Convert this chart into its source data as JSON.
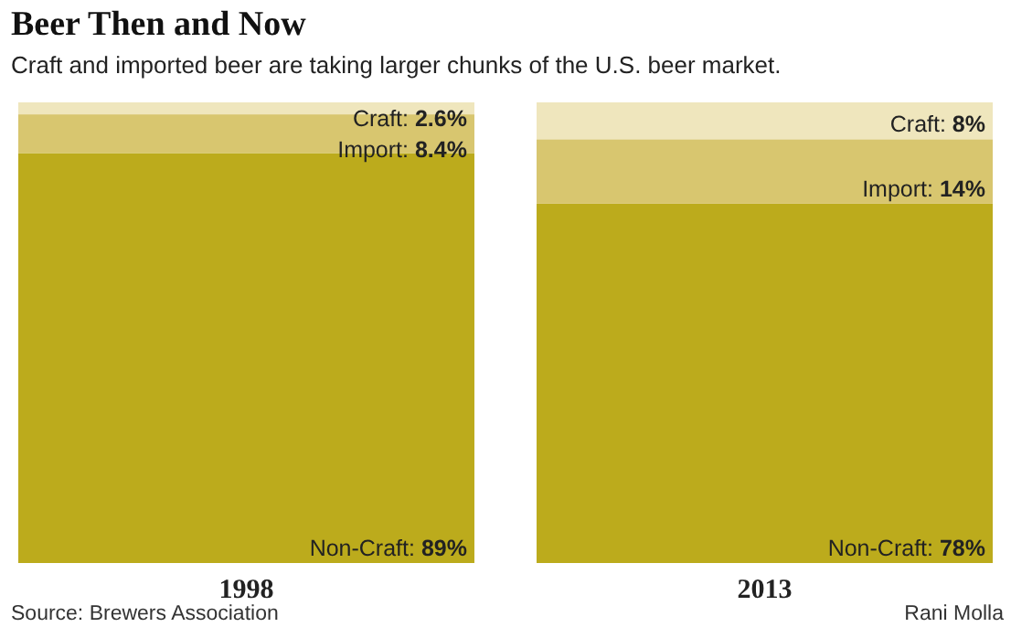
{
  "chart_data": {
    "type": "bar",
    "title": "Beer Then and Now",
    "subtitle": "Craft and imported beer are taking larger chunks of the U.S. beer market.",
    "categories": [
      "1998",
      "2013"
    ],
    "stacked": true,
    "series": [
      {
        "name": "Non-Craft:",
        "color": "#bcab1c",
        "values": [
          89,
          78
        ],
        "value_labels": [
          "89%",
          "78%"
        ]
      },
      {
        "name": "Import:",
        "color": "#d8c66f",
        "values": [
          8.4,
          14
        ],
        "value_labels": [
          "8.4%",
          "14%"
        ]
      },
      {
        "name": "Craft:",
        "color": "#efe6bd",
        "values": [
          2.6,
          8
        ],
        "value_labels": [
          "2.6%",
          "8%"
        ]
      }
    ],
    "annotations": [
      "Source: Brewers Association",
      "Rani Molla"
    ]
  }
}
